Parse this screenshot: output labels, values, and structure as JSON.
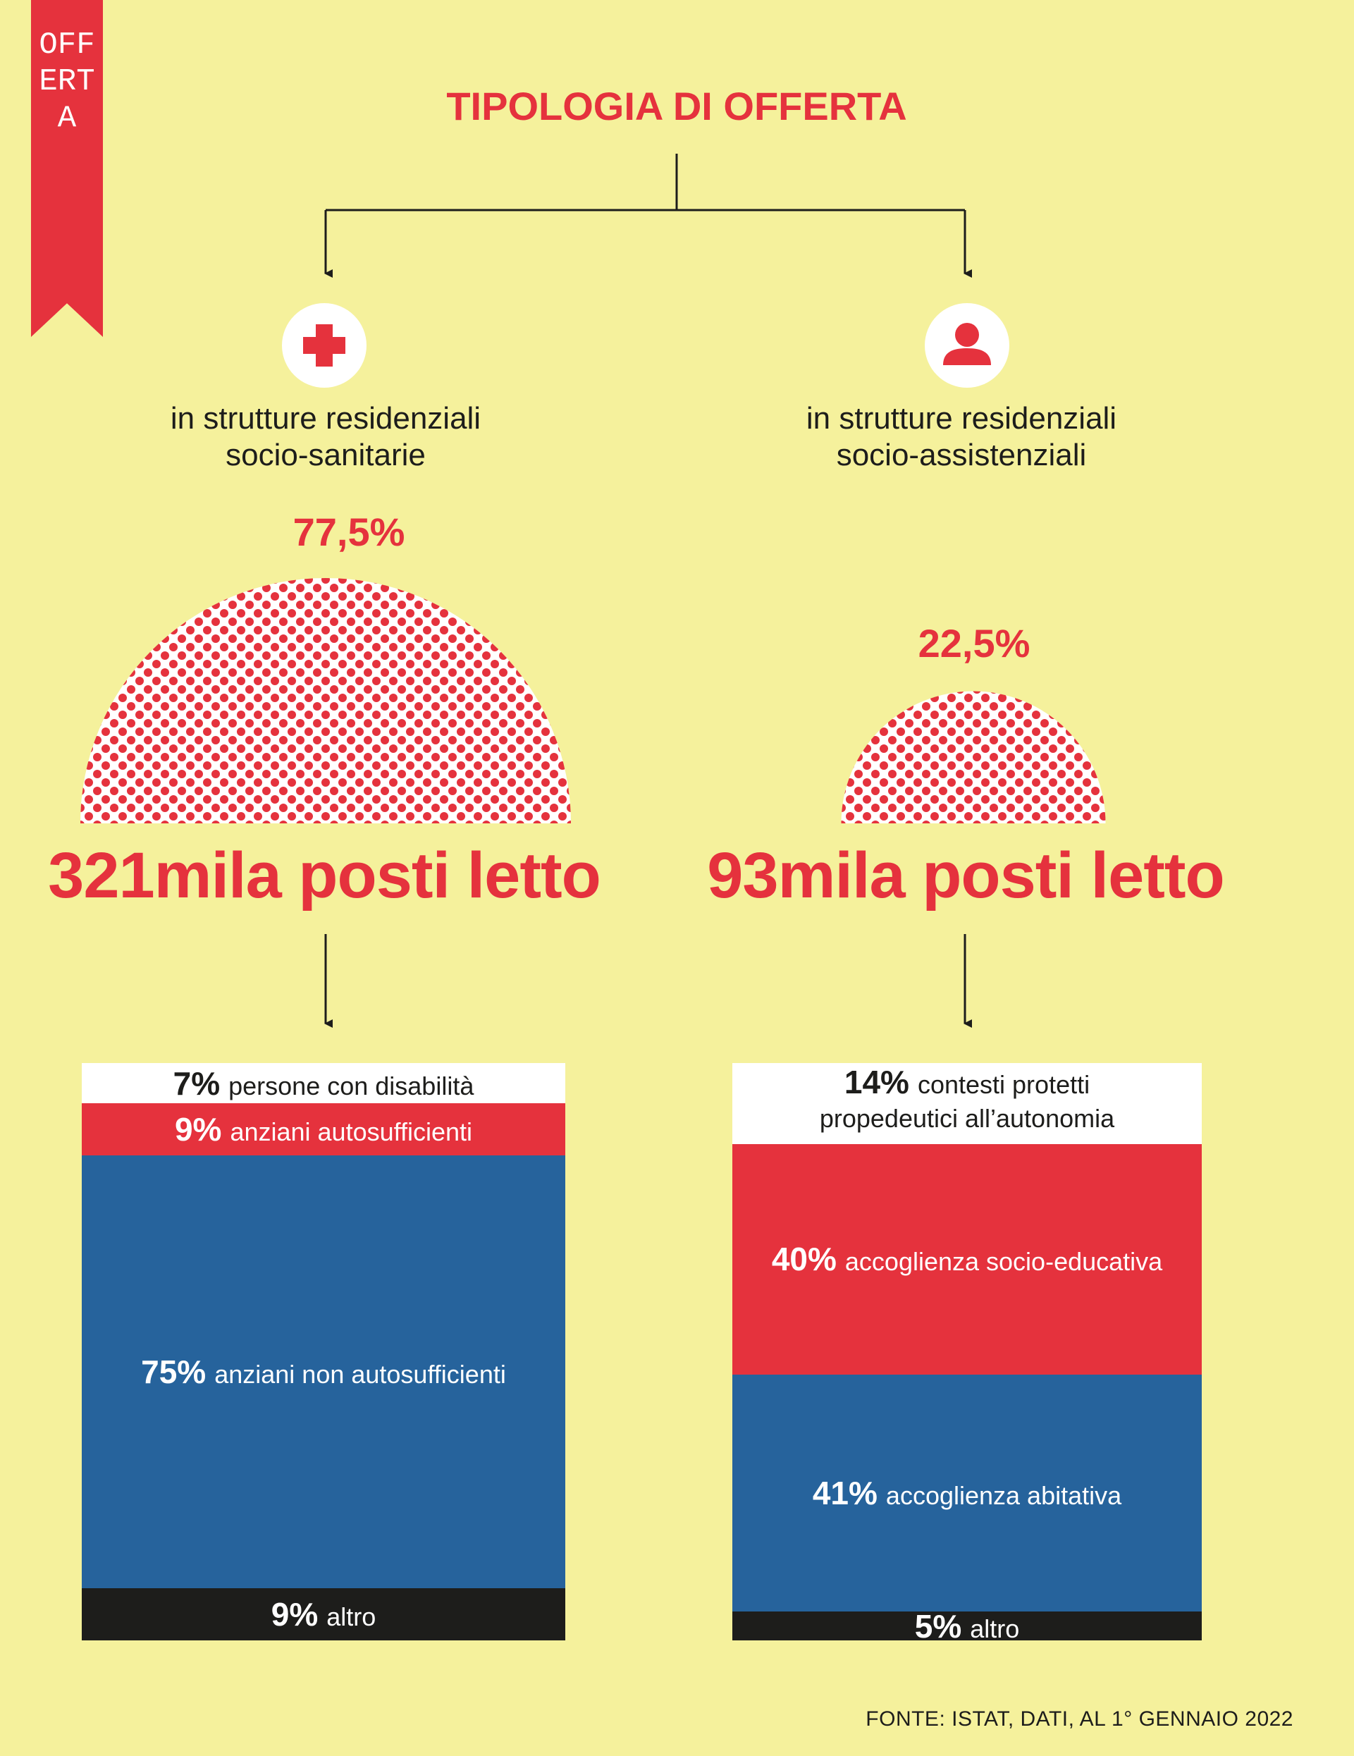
{
  "tag": {
    "label": "OFFERTA"
  },
  "title": "TIPOLOGIA DI OFFERTA",
  "colors": {
    "background": "#f5f19c",
    "red": "#e5323d",
    "blue": "#26639c",
    "black": "#1d1d1b",
    "white": "#ffffff"
  },
  "left": {
    "icon": "medical-cross-icon",
    "label_line1": "in strutture residenziali",
    "label_line2": "socio-sanitarie",
    "share": "77,5%",
    "share_value": 77.5,
    "beds": "321mila posti letto",
    "breakdown": [
      {
        "pct": "7%",
        "value": 7,
        "label": "persone con disabilità",
        "color": "#ffffff",
        "text_color": "#1d1d1b"
      },
      {
        "pct": "9%",
        "value": 9,
        "label": "anziani autosufficienti",
        "color": "#e5323d",
        "text_color": "#ffffff"
      },
      {
        "pct": "75%",
        "value": 75,
        "label": "anziani non autosufficienti",
        "color": "#26639c",
        "text_color": "#ffffff"
      },
      {
        "pct": "9%",
        "value": 9,
        "label": "altro",
        "color": "#1d1d1b",
        "text_color": "#ffffff"
      }
    ]
  },
  "right": {
    "icon": "person-icon",
    "label_line1": "in strutture residenziali",
    "label_line2": "socio-assistenziali",
    "share": "22,5%",
    "share_value": 22.5,
    "beds": "93mila posti letto",
    "breakdown": [
      {
        "pct": "14%",
        "value": 14,
        "label": "contesti protetti propedeutici all’autonomia",
        "color": "#ffffff",
        "text_color": "#1d1d1b"
      },
      {
        "pct": "40%",
        "value": 40,
        "label": "accoglienza socio-educativa",
        "color": "#e5323d",
        "text_color": "#ffffff"
      },
      {
        "pct": "41%",
        "value": 41,
        "label": "accoglienza abitativa",
        "color": "#26639c",
        "text_color": "#ffffff"
      },
      {
        "pct": "5%",
        "value": 5,
        "label": "altro",
        "color": "#1d1d1b",
        "text_color": "#ffffff"
      }
    ]
  },
  "source": "FONTE: ISTAT, DATI, AL 1° GENNAIO 2022"
}
